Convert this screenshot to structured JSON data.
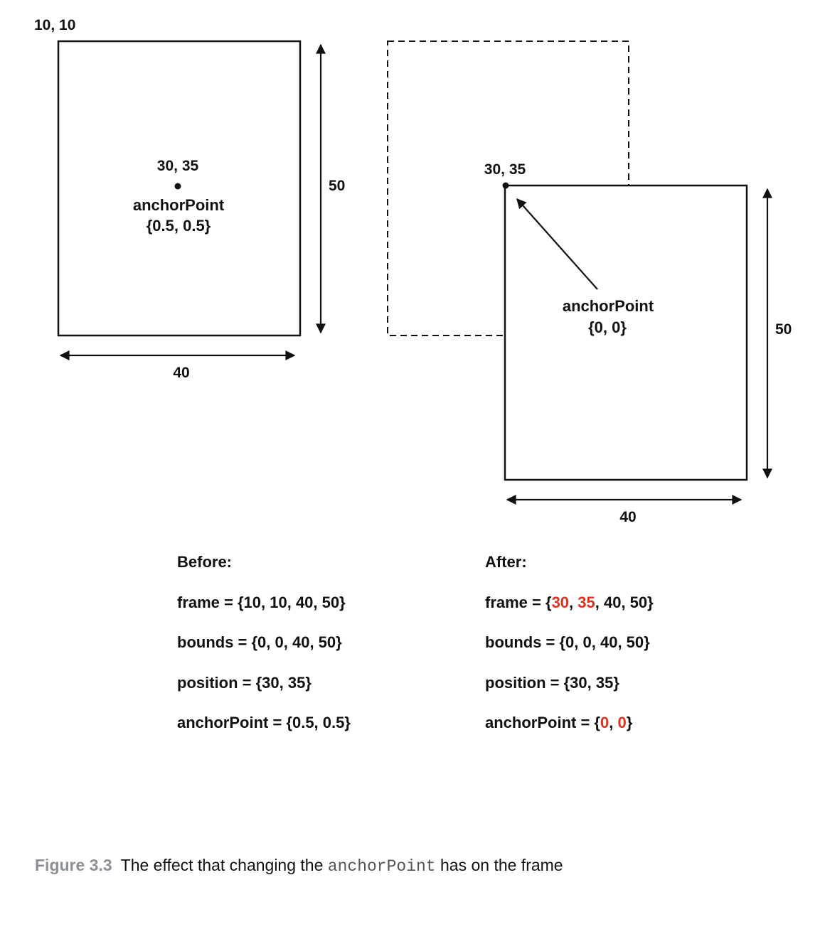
{
  "before": {
    "origin_label": "10, 10",
    "position_label": "30, 35",
    "anchor_label": "anchorPoint",
    "anchor_value": "{0.5, 0.5}",
    "height_label": "50",
    "width_label": "40",
    "heading": "Before:",
    "frame_line": "frame = {10, 10, 40, 50}",
    "bounds_line": "bounds = {0, 0, 40, 50}",
    "position_line": "position = {30, 35}",
    "anchor_line": "anchorPoint = {0.5, 0.5}"
  },
  "after": {
    "position_label": "30, 35",
    "anchor_label": "anchorPoint",
    "anchor_value": "{0, 0}",
    "height_label": "50",
    "width_label": "40",
    "heading": "After:",
    "frame_line": {
      "prefix": "frame = {",
      "x": "30",
      "sep": ", ",
      "y": "35",
      "suffix": ", 40, 50}"
    },
    "bounds_line": "bounds = {0, 0, 40, 50}",
    "position_line": "position = {30, 35}",
    "anchor_line": {
      "prefix": "anchorPoint = {",
      "x": "0",
      "sep": ", ",
      "y": "0",
      "suffix": "}"
    }
  },
  "caption": {
    "figure_label": "Figure 3.3",
    "text_before": "The effect that changing the ",
    "code": "anchorPoint",
    "text_after": " has on the frame"
  },
  "colors": {
    "highlight": "#e0301e",
    "ink": "#111111",
    "caption_label": "#8c8f94"
  }
}
